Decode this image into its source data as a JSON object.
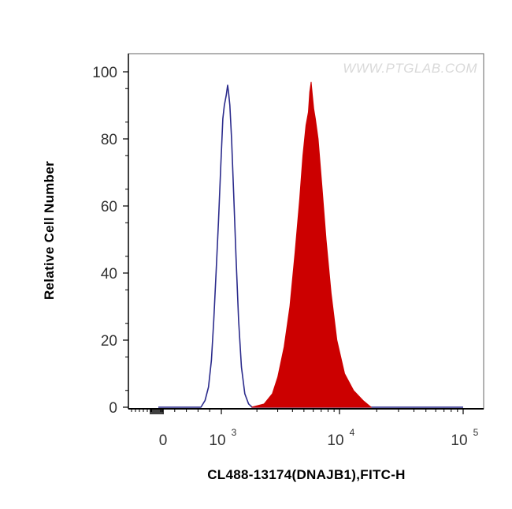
{
  "chart_data": {
    "type": "area",
    "title": "",
    "xlabel": "CL488-13174(DNAJB1),FITC-H",
    "ylabel": "Relative Cell Number",
    "watermark": "WWW.PTGLAB.COM",
    "ylim": [
      0,
      100
    ],
    "yticks": [
      "0",
      "20",
      "40",
      "60",
      "80",
      "100"
    ],
    "xscale": "biexponential",
    "xticks": [
      {
        "value": 0,
        "base": "0",
        "exp": ""
      },
      {
        "value": 1000,
        "base": "10",
        "exp": "3"
      },
      {
        "value": 10000,
        "base": "10",
        "exp": "4"
      },
      {
        "value": 100000,
        "base": "10",
        "exp": "5"
      }
    ],
    "grid": false,
    "series": [
      {
        "role": "control",
        "style": "outline",
        "color": "#2b2b8c",
        "points": [
          [
            -100,
            0
          ],
          [
            650,
            0
          ],
          [
            720,
            2
          ],
          [
            780,
            6
          ],
          [
            830,
            14
          ],
          [
            870,
            26
          ],
          [
            910,
            40
          ],
          [
            950,
            55
          ],
          [
            990,
            72
          ],
          [
            1030,
            86
          ],
          [
            1060,
            90
          ],
          [
            1100,
            93
          ],
          [
            1130,
            96
          ],
          [
            1150,
            94
          ],
          [
            1180,
            90
          ],
          [
            1220,
            80
          ],
          [
            1270,
            64
          ],
          [
            1330,
            45
          ],
          [
            1400,
            26
          ],
          [
            1480,
            12
          ],
          [
            1580,
            4
          ],
          [
            1700,
            1
          ],
          [
            1820,
            0
          ],
          [
            100000,
            0
          ]
        ]
      },
      {
        "role": "stained",
        "style": "filled",
        "color": "#cc0000",
        "points": [
          [
            1800,
            0
          ],
          [
            2300,
            1
          ],
          [
            2700,
            4
          ],
          [
            3000,
            9
          ],
          [
            3400,
            18
          ],
          [
            3800,
            30
          ],
          [
            4200,
            46
          ],
          [
            4600,
            62
          ],
          [
            4900,
            75
          ],
          [
            5200,
            84
          ],
          [
            5450,
            88
          ],
          [
            5600,
            94
          ],
          [
            5750,
            97
          ],
          [
            5900,
            93
          ],
          [
            6050,
            89
          ],
          [
            6250,
            86
          ],
          [
            6600,
            80
          ],
          [
            7100,
            66
          ],
          [
            7700,
            50
          ],
          [
            8500,
            34
          ],
          [
            9500,
            20
          ],
          [
            11000,
            10
          ],
          [
            13000,
            5
          ],
          [
            15500,
            2
          ],
          [
            18000,
            0
          ]
        ]
      }
    ]
  }
}
